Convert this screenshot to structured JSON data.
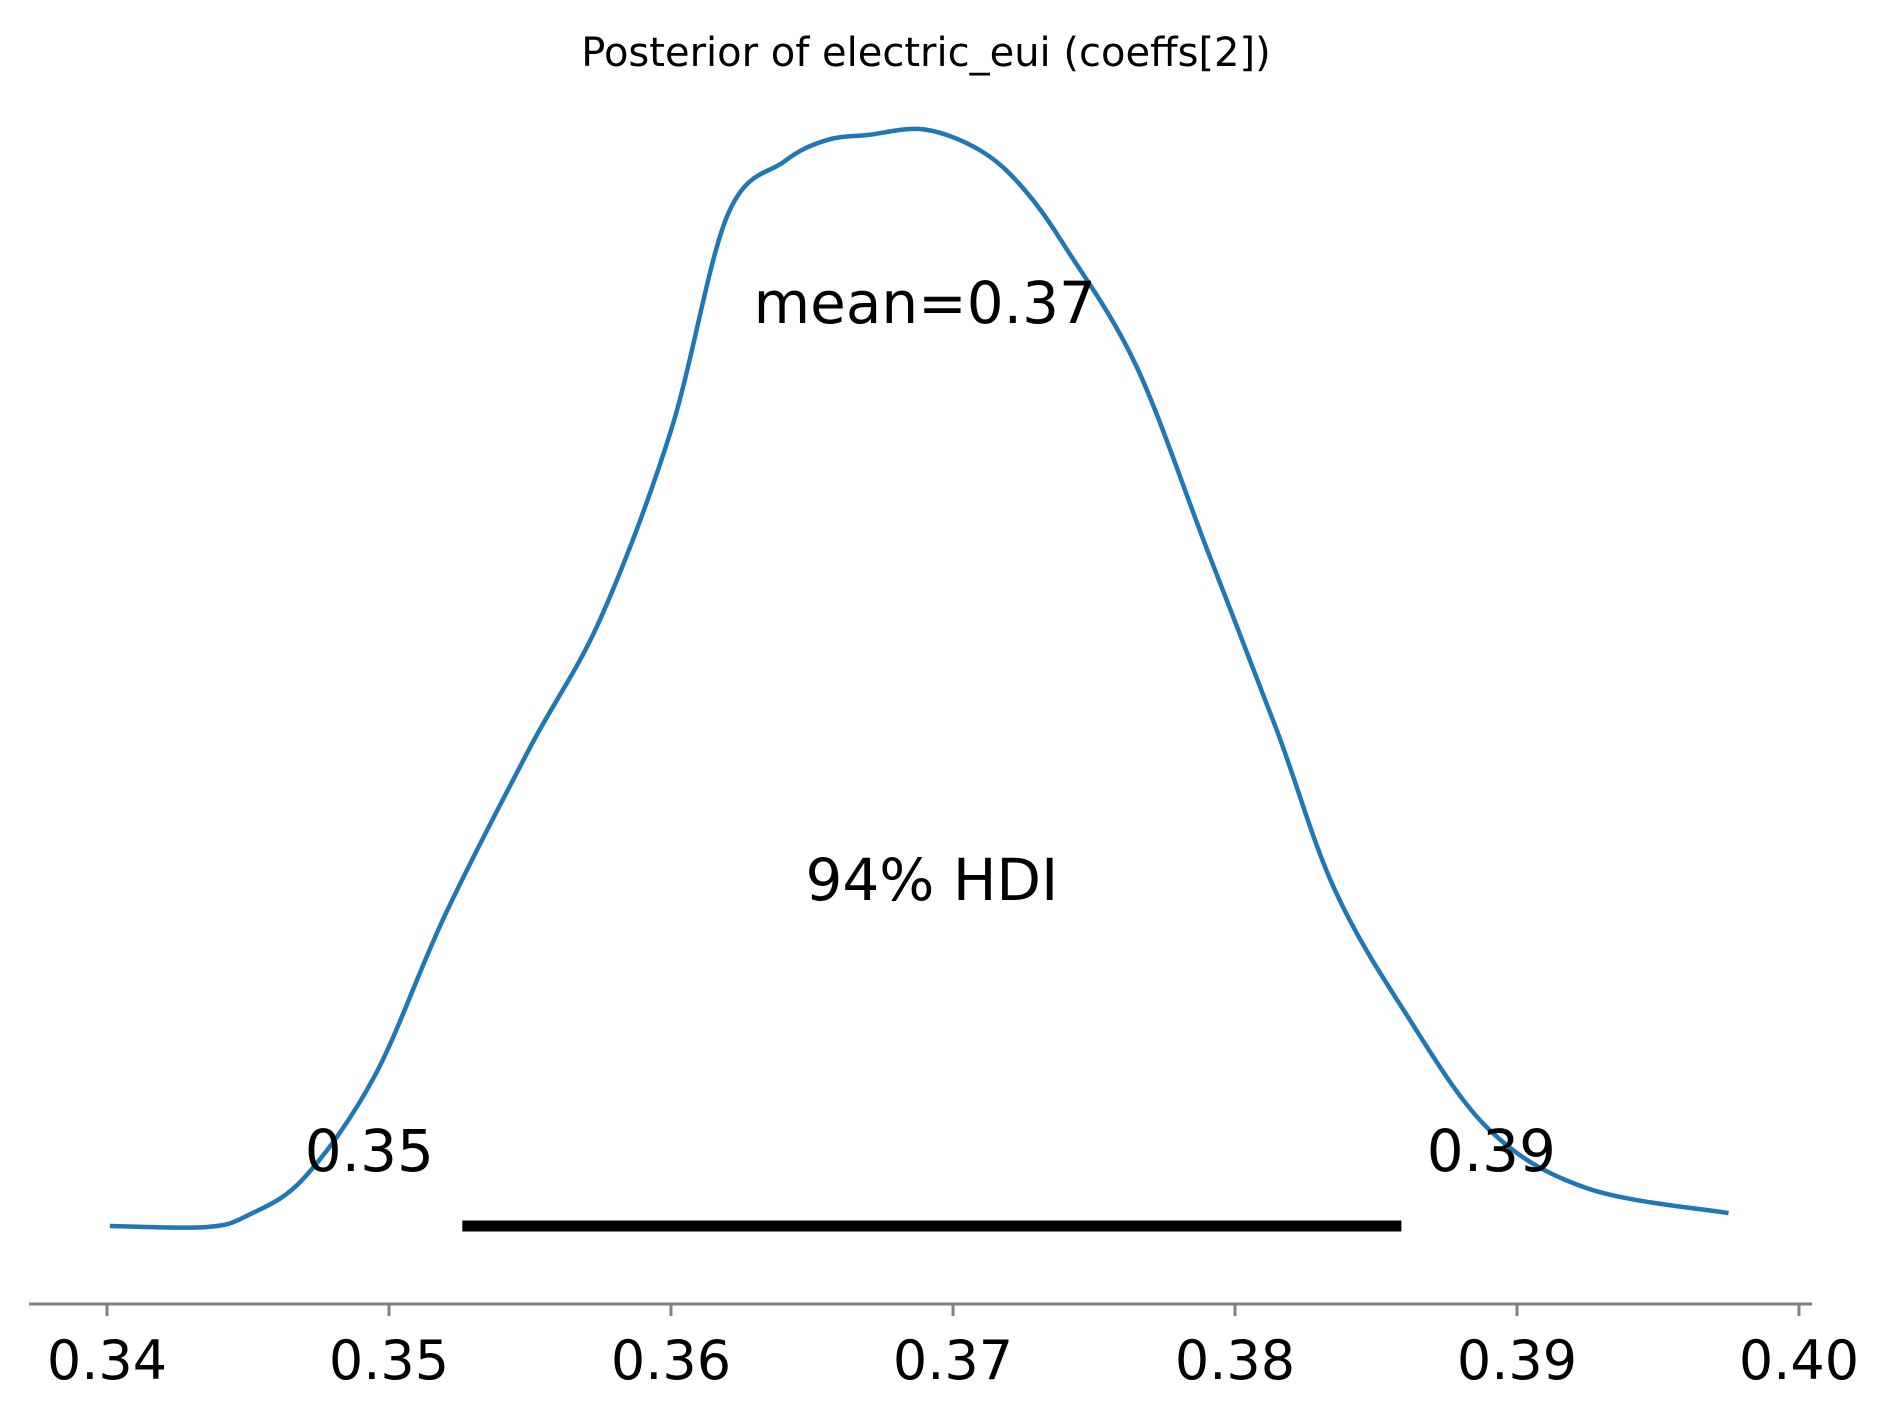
{
  "chart_data": {
    "type": "area",
    "title": "Posterior of electric_eui (coeffs[2])",
    "xlabel": "",
    "ylabel": "",
    "xlim": [
      0.3394,
      0.4002
    ],
    "ylim": [
      0,
      1
    ],
    "grid": false,
    "x_ticks": [
      "0.34",
      "0.35",
      "0.36",
      "0.37",
      "0.38",
      "0.39",
      "0.40"
    ],
    "x_tick_values": [
      0.34,
      0.35,
      0.36,
      0.37,
      0.38,
      0.39,
      0.4
    ],
    "series": [
      {
        "color": "#1f77b4",
        "x": [
          0.3401,
          0.3435,
          0.345,
          0.347,
          0.3495,
          0.352,
          0.355,
          0.3575,
          0.36,
          0.362,
          0.364,
          0.3655,
          0.367,
          0.369,
          0.371,
          0.3725,
          0.374,
          0.3765,
          0.379,
          0.3815,
          0.3835,
          0.386,
          0.389,
          0.3925,
          0.3975
        ],
        "y": [
          0.0,
          -0.001,
          0.01,
          0.045,
          0.14,
          0.29,
          0.445,
          0.565,
          0.74,
          0.94,
          0.99,
          1.01,
          1.015,
          1.02,
          1.0,
          0.965,
          0.91,
          0.8,
          0.63,
          0.46,
          0.315,
          0.2,
          0.09,
          0.035,
          0.012
        ]
      }
    ],
    "mean_label": "mean=0.37",
    "hdi": {
      "label": "94% HDI",
      "lower": 0.3526,
      "upper": 0.3859,
      "lower_label": "0.35",
      "upper_label": "0.39"
    }
  }
}
